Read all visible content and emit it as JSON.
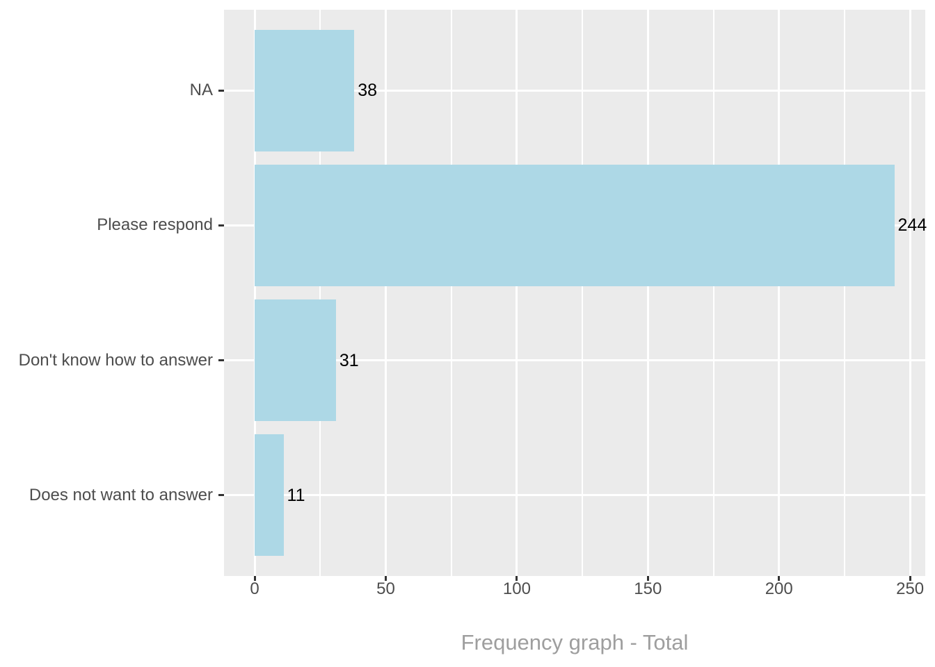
{
  "chart_data": {
    "type": "bar",
    "orientation": "horizontal",
    "title": "",
    "xlabel": "Frequency graph - Total",
    "ylabel": "",
    "categories_top_to_bottom": [
      "NA",
      "Please respond",
      "Don't know how to answer",
      "Does not want to answer"
    ],
    "values": [
      38,
      244,
      31,
      11
    ],
    "value_labels": [
      "38",
      "244",
      "31",
      "11"
    ],
    "x_major_ticks": [
      0,
      50,
      100,
      150,
      200,
      250
    ],
    "x_minor_ticks": [
      25,
      75,
      125,
      175,
      225
    ],
    "xlim": [
      -11.7,
      255.8
    ],
    "bar_width_fraction": 0.9,
    "grid": "major-and-minor-vertical, major-horizontal",
    "legend": "none",
    "colors": {
      "background": "#FFFFFF",
      "panel_background": "#EBEBEB",
      "gridline": "#FFFFFF",
      "bar_fill": "#ADD8E6",
      "axis_text": "#4D4D4D",
      "tick_mark": "#333333",
      "value_label": "#000000",
      "axis_title": "#9E9E9E"
    }
  }
}
